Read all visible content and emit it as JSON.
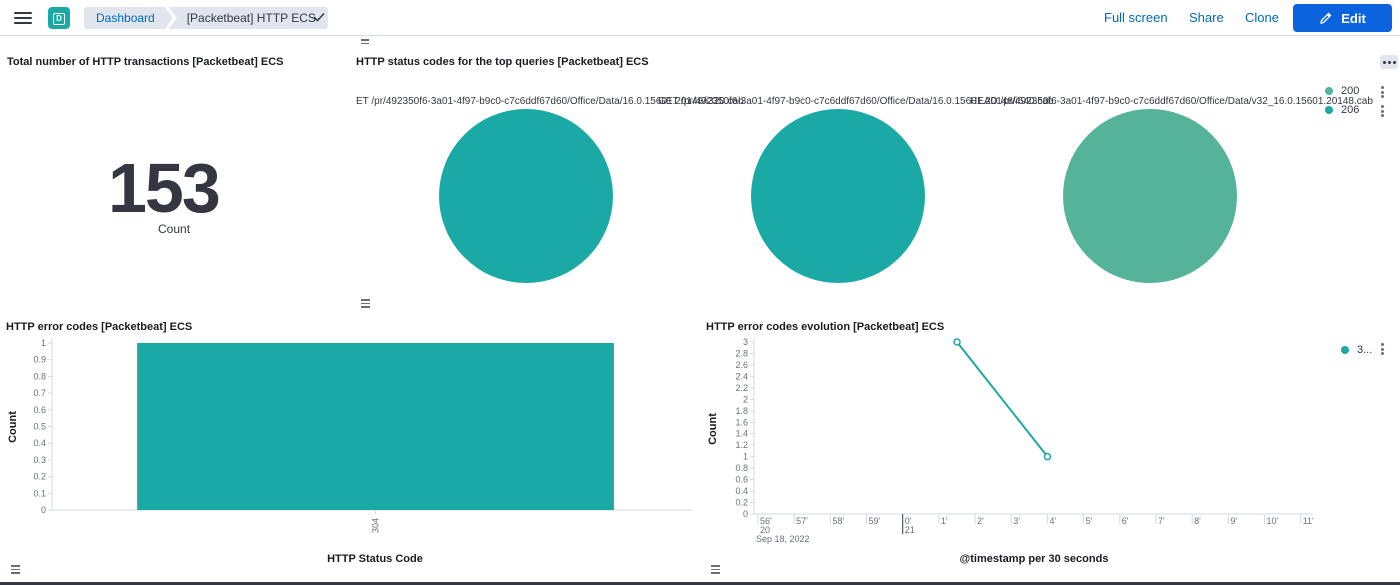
{
  "header": {
    "space_initial": "D",
    "breadcrumbs": [
      "Dashboard",
      "[Packetbeat] HTTP ECS"
    ],
    "full_screen": "Full screen",
    "share": "Share",
    "clone": "Clone",
    "edit": "Edit",
    "icons": [
      "menu-icon",
      "check-icon",
      "pencil-icon"
    ]
  },
  "panels": {
    "total": {
      "title": "Total number of HTTP transactions [Packetbeat] ECS",
      "value": "153",
      "label": "Count"
    },
    "status_codes": {
      "title": "HTTP status codes for the top queries [Packetbeat] ECS",
      "pie_labels": [
        "ET /pr/492350f6-3a01-4f97-b9c0-c7c6ddf67d60/Office/Data/16.0.15601.20148/i320.cab",
        "GET /pr/492350f6-3a01-4f97-b9c0-c7c6ddf67d60/Office/Data/16.0.15601.20148/i640.cab",
        "HEAD /pr/492350f6-3a01-4f97-b9c0-c7c6ddf67d60/Office/Data/v32_16.0.15601.20148.cab"
      ],
      "legend": [
        {
          "label": "200",
          "color": "#54b399"
        },
        {
          "label": "206",
          "color": "#1ba9a6"
        }
      ]
    },
    "error_codes": {
      "title": "HTTP error codes [Packetbeat] ECS"
    },
    "error_evolution": {
      "title": "HTTP error codes evolution [Packetbeat] ECS",
      "legend": [
        {
          "label": "3...",
          "color": "#1ba9a6"
        }
      ],
      "date_label": "Sep 18, 2022"
    }
  },
  "chart_data": [
    {
      "type": "pie",
      "charts": [
        {
          "label": "ET /pr/492350f6-3a01-4f97-b9c0-c7c6ddf67d60/Office/Data/16.0.15601.20148/i320.cab",
          "slices": [
            {
              "name": "206",
              "value": 1
            }
          ]
        },
        {
          "label": "GET /pr/492350f6-3a01-4f97-b9c0-c7c6ddf67d60/Office/Data/16.0.15601.20148/i640.cab",
          "slices": [
            {
              "name": "206",
              "value": 1
            }
          ]
        },
        {
          "label": "HEAD /pr/492350f6-3a01-4f97-b9c0-c7c6ddf67d60/Office/Data/v32_16.0.15601.20148.cab",
          "slices": [
            {
              "name": "200",
              "value": 1
            }
          ]
        }
      ],
      "colors": [
        "#1ba9a6",
        "#1ba9a6",
        "#54b399"
      ],
      "legend": [
        "200",
        "206"
      ]
    },
    {
      "type": "bar",
      "categories": [
        "304"
      ],
      "values": [
        1
      ],
      "xlabel": "HTTP Status Code",
      "ylabel": "Count",
      "ylim": [
        0,
        1
      ],
      "yticks": [
        "0",
        "0.1",
        "0.2",
        "0.3",
        "0.4",
        "0.5",
        "0.6",
        "0.7",
        "0.8",
        "0.9",
        "1"
      ],
      "color": "#1ba9a6"
    },
    {
      "type": "line",
      "x": [
        "1'30",
        "4'"
      ],
      "y": [
        3,
        1
      ],
      "xlabel": "@timestamp per 30 seconds",
      "ylabel": "Count",
      "ylim": [
        0,
        3
      ],
      "yticks": [
        "0",
        "0.2",
        "0.4",
        "0.6",
        "0.8",
        "1",
        "1.2",
        "1.4",
        "1.6",
        "1.8",
        "2",
        "2.2",
        "2.4",
        "2.6",
        "2.8",
        "3"
      ],
      "xticks": [
        "56'",
        "57'",
        "58'",
        "59'",
        "0'",
        "1'",
        "2'",
        "3'",
        "4'",
        "5'",
        "6'",
        "7'",
        "8'",
        "9'",
        "10'",
        "11'"
      ],
      "x_sublabels": {
        "56'": "20",
        "0'": "21"
      },
      "color": "#1ba9a6"
    }
  ]
}
